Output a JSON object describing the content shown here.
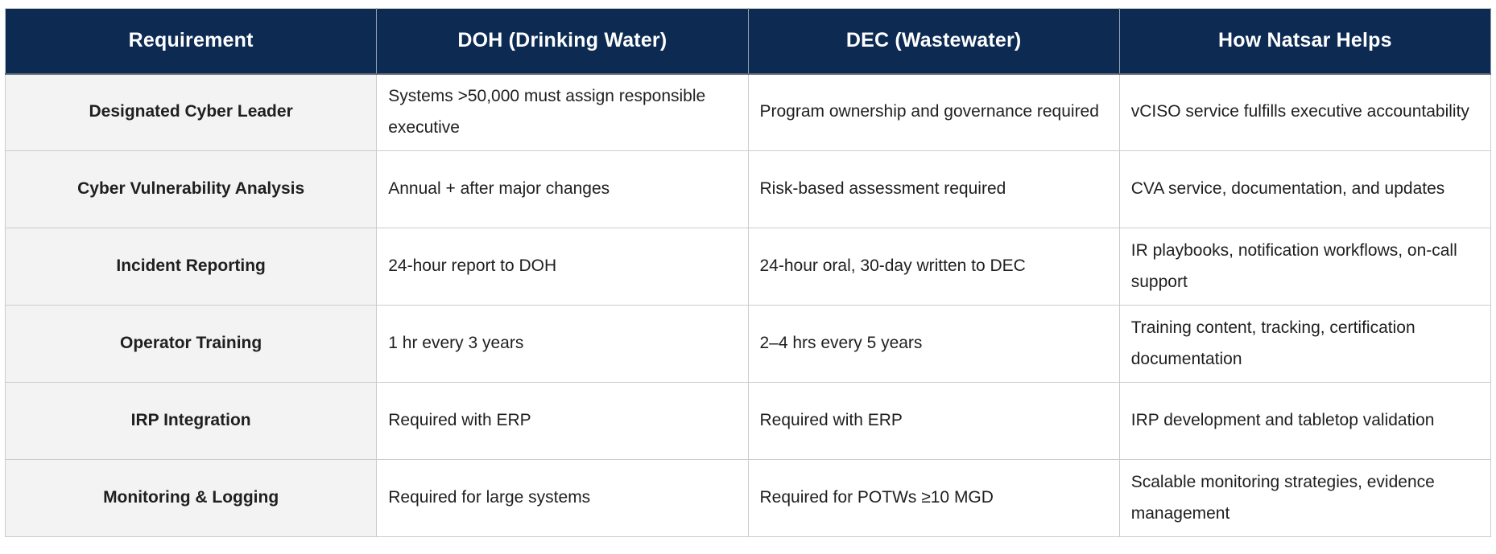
{
  "theme": {
    "header_bg": "#0c2a52",
    "header_text": "#ffffff",
    "row_label_bg": "#f3f3f3",
    "body_text": "#1f1f1f",
    "border_color": "#cccccc"
  },
  "table": {
    "columns": [
      "Requirement",
      "DOH (Drinking Water)",
      "DEC (Wastewater)",
      "How Natsar Helps"
    ],
    "rows": [
      {
        "requirement": "Designated Cyber Leader",
        "doh": "Systems >50,000 must assign responsible executive",
        "dec": "Program ownership and governance required",
        "natsar": "vCISO service fulfills executive accountability"
      },
      {
        "requirement": "Cyber Vulnerability Analysis",
        "doh": "Annual + after major changes",
        "dec": "Risk-based assessment required",
        "natsar": "CVA service, documentation, and updates"
      },
      {
        "requirement": "Incident Reporting",
        "doh": "24-hour report to DOH",
        "dec": "24-hour oral, 30-day written to DEC",
        "natsar": "IR playbooks, notification workflows, on-call support"
      },
      {
        "requirement": "Operator Training",
        "doh": "1 hr every 3 years",
        "dec": "2–4 hrs every 5 years",
        "natsar": "Training content, tracking, certification documentation"
      },
      {
        "requirement": "IRP Integration",
        "doh": "Required with ERP",
        "dec": "Required with ERP",
        "natsar": "IRP development and tabletop validation"
      },
      {
        "requirement": "Monitoring & Logging",
        "doh": "Required for large systems",
        "dec": "Required for POTWs ≥10 MGD",
        "natsar": "Scalable monitoring strategies, evidence management"
      }
    ]
  }
}
